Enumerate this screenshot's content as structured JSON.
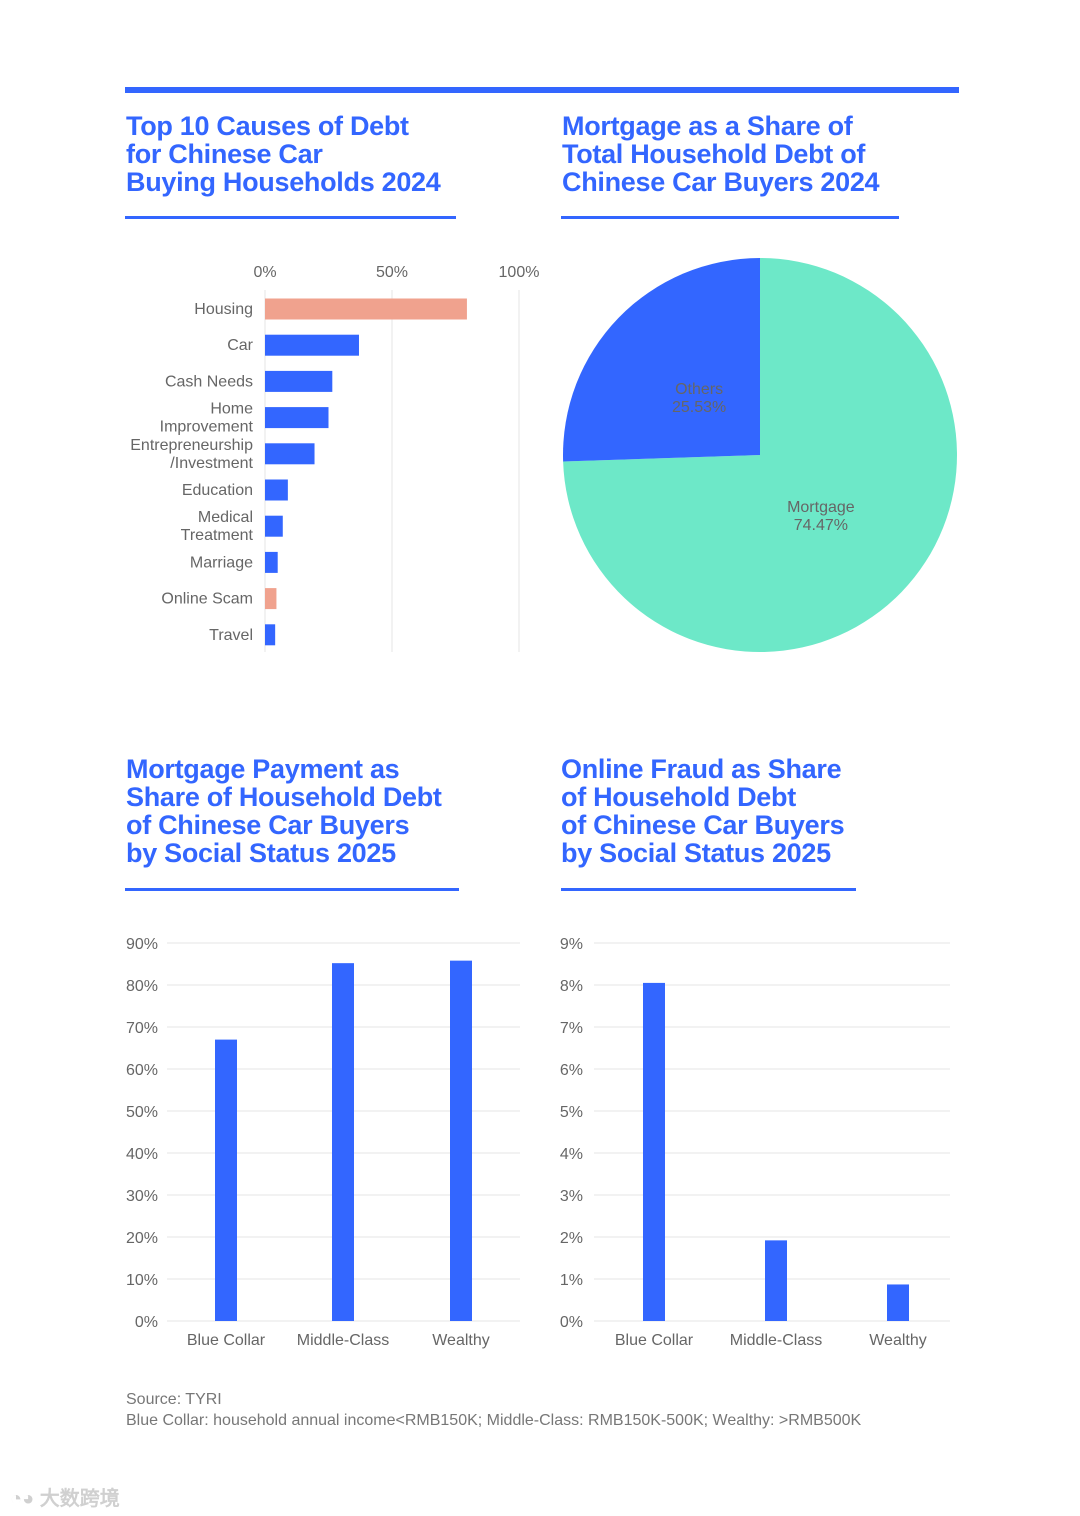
{
  "colors": {
    "accent": "#3366ff",
    "bar": "#3366ff",
    "highlight": "#f0a28e",
    "pie_mortgage": "#6de8c8",
    "pie_others": "#3366ff",
    "grid": "#e6e6e6"
  },
  "titles": {
    "debt_causes": "Top 10 Causes of Debt\nfor Chinese Car\nBuying Households 2024",
    "mortgage_share": "Mortgage as a Share of\nTotal Household Debt of\nChinese Car Buyers 2024",
    "mortgage_status": "Mortgage Payment as\nShare of Household Debt\nof Chinese Car Buyers\nby Social Status 2025",
    "fraud_status": "Online Fraud as Share\nof Household Debt\nof Chinese Car Buyers\nby Social Status 2025"
  },
  "chart_data": [
    {
      "type": "bar",
      "orientation": "horizontal",
      "title": "Top 10 Causes of Debt for Chinese Car Buying Households 2024",
      "x_ticks": [
        "0%",
        "50%",
        "100%"
      ],
      "xlim": [
        0,
        100
      ],
      "grid": true,
      "categories": [
        [
          "Housing"
        ],
        [
          "Car"
        ],
        [
          "Cash Needs"
        ],
        [
          "Home",
          "Improvement"
        ],
        [
          "Entrepreneurship",
          "/Investment"
        ],
        [
          "Education"
        ],
        [
          "Medical",
          "Treatment"
        ],
        [
          "Marriage"
        ],
        [
          "Online Scam"
        ],
        [
          "Travel"
        ]
      ],
      "values": [
        79.5,
        37,
        26.5,
        25,
        19.5,
        9,
        7,
        5,
        4.5,
        4
      ],
      "highlighted": [
        true,
        false,
        false,
        false,
        false,
        false,
        false,
        false,
        true,
        false
      ]
    },
    {
      "type": "pie",
      "title": "Mortgage as a Share of Total Household Debt of Chinese Car Buyers 2024",
      "slices": [
        {
          "label": "Mortgage",
          "value": 74.47,
          "value_label": "74.47%"
        },
        {
          "label": "Others",
          "value": 25.53,
          "value_label": "25.53%"
        }
      ]
    },
    {
      "type": "bar",
      "orientation": "vertical",
      "title": "Mortgage Payment as Share of Household Debt of Chinese Car Buyers by Social Status 2025",
      "categories": [
        "Blue Collar",
        "Middle-Class",
        "Wealthy"
      ],
      "values": [
        67,
        85.2,
        85.8
      ],
      "ylim": [
        0,
        90
      ],
      "y_ticks": [
        "0%",
        "10%",
        "20%",
        "30%",
        "40%",
        "50%",
        "60%",
        "70%",
        "80%",
        "90%"
      ],
      "grid": true
    },
    {
      "type": "bar",
      "orientation": "vertical",
      "title": "Online Fraud as Share of Household Debt of Chinese Car Buyers by Social Status 2025",
      "categories": [
        "Blue Collar",
        "Middle-Class",
        "Wealthy"
      ],
      "values": [
        8.05,
        1.92,
        0.87
      ],
      "ylim": [
        0,
        9
      ],
      "y_ticks": [
        "0%",
        "1%",
        "2%",
        "3%",
        "4%",
        "5%",
        "6%",
        "7%",
        "8%",
        "9%"
      ],
      "grid": true
    }
  ],
  "footer": {
    "source": "Source: TYRI",
    "note": "Blue Collar: household annual income<RMB150K; Middle-Class: RMB150K-500K; Wealthy: >RMB500K"
  },
  "watermark": "大数跨境"
}
